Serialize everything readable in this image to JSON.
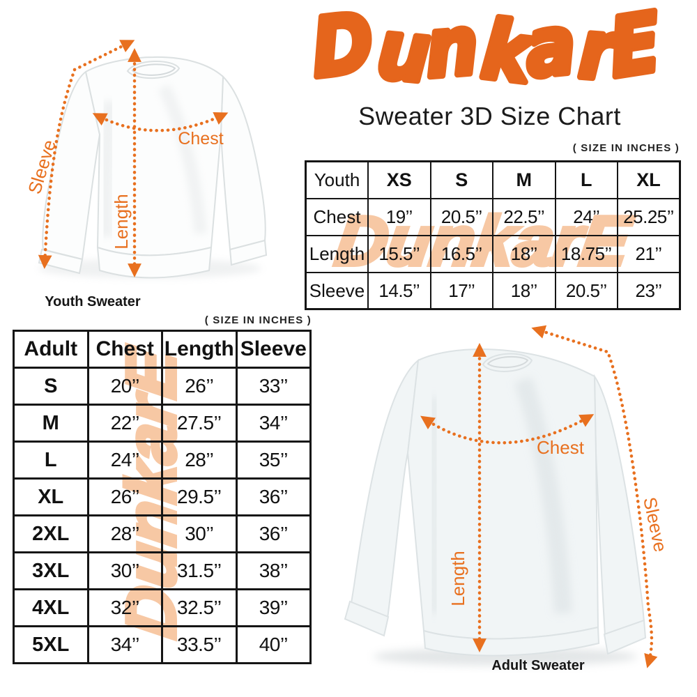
{
  "brand": {
    "logo_text": "DunkarE",
    "subtitle": "Sweater 3D Size Chart"
  },
  "size_note": "( SIZE IN INCHES )",
  "colors": {
    "brand_orange": "#E5651C",
    "arrow_orange": "#E8701F",
    "watermark_peach": "#F7C8A4",
    "text_black": "#151515"
  },
  "measurements": {
    "chest": "Chest",
    "length": "Length",
    "sleeve": "Sleeve"
  },
  "youth": {
    "caption": "Youth Sweater",
    "table": {
      "header": [
        "Youth",
        "XS",
        "S",
        "M",
        "L",
        "XL"
      ],
      "rows": [
        {
          "label": "Chest",
          "values": [
            "19’’",
            "20.5’’",
            "22.5’’",
            "24’’",
            "25.25’’"
          ]
        },
        {
          "label": "Length",
          "values": [
            "15.5’’",
            "16.5’’",
            "18’’",
            "18.75’’",
            "21’’"
          ]
        },
        {
          "label": "Sleeve",
          "values": [
            "14.5’’",
            "17’’",
            "18’’",
            "20.5’’",
            "23’’"
          ]
        }
      ]
    }
  },
  "adult": {
    "caption": "Adult Sweater",
    "table": {
      "header": [
        "Adult",
        "Chest",
        "Length",
        "Sleeve"
      ],
      "rows": [
        {
          "label": "S",
          "values": [
            "20’’",
            "26’’",
            "33’’"
          ]
        },
        {
          "label": "M",
          "values": [
            "22’’",
            "27.5’’",
            "34’’"
          ]
        },
        {
          "label": "L",
          "values": [
            "24’’",
            "28’’",
            "35’’"
          ]
        },
        {
          "label": "XL",
          "values": [
            "26’’",
            "29.5’’",
            "36’’"
          ]
        },
        {
          "label": "2XL",
          "values": [
            "28’’",
            "30’’",
            "36’’"
          ]
        },
        {
          "label": "3XL",
          "values": [
            "30’’",
            "31.5’’",
            "38’’"
          ]
        },
        {
          "label": "4XL",
          "values": [
            "32’’",
            "32.5’’",
            "39’’"
          ]
        },
        {
          "label": "5XL",
          "values": [
            "34’’",
            "33.5’’",
            "40’’"
          ]
        }
      ]
    }
  },
  "chart_data": [
    {
      "type": "table",
      "title": "Youth sweater sizes ( SIZE IN INCHES )",
      "columns": [
        "Youth",
        "XS",
        "S",
        "M",
        "L",
        "XL"
      ],
      "rows": [
        [
          "Chest",
          19,
          20.5,
          22.5,
          24,
          25.25
        ],
        [
          "Length",
          15.5,
          16.5,
          18,
          18.75,
          21
        ],
        [
          "Sleeve",
          14.5,
          17,
          18,
          20.5,
          23
        ]
      ]
    },
    {
      "type": "table",
      "title": "Adult sweater sizes ( SIZE IN INCHES )",
      "columns": [
        "Adult",
        "Chest",
        "Length",
        "Sleeve"
      ],
      "rows": [
        [
          "S",
          20,
          26,
          33
        ],
        [
          "M",
          22,
          27.5,
          34
        ],
        [
          "L",
          24,
          28,
          35
        ],
        [
          "XL",
          26,
          29.5,
          36
        ],
        [
          "2XL",
          28,
          30,
          36
        ],
        [
          "3XL",
          30,
          31.5,
          38
        ],
        [
          "4XL",
          32,
          32.5,
          39
        ],
        [
          "5XL",
          34,
          33.5,
          40
        ]
      ]
    }
  ]
}
